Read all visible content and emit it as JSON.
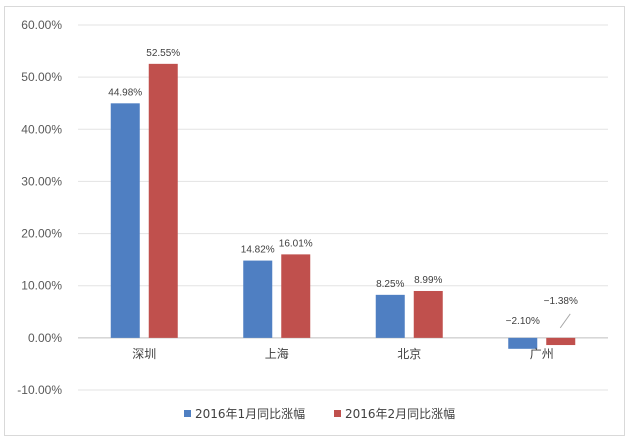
{
  "chart_data": {
    "type": "bar",
    "title": "",
    "xlabel": "",
    "ylabel": "",
    "categories": [
      "深圳",
      "上海",
      "北京",
      "广州"
    ],
    "series": [
      {
        "name": "2016年1月同比涨幅",
        "color": "#4f7fc2",
        "values": [
          44.98,
          14.82,
          8.25,
          -2.1
        ],
        "labels": [
          "44.98%",
          "14.82%",
          "8.25%",
          "−2.10%"
        ]
      },
      {
        "name": "2016年2月同比涨幅",
        "color": "#c0504d",
        "values": [
          52.55,
          16.01,
          8.99,
          -1.38
        ],
        "labels": [
          "52.55%",
          "16.01%",
          "8.99%",
          "−1.38%"
        ]
      }
    ],
    "ylim": [
      -10,
      60
    ],
    "ytick_values": [
      -10,
      0,
      10,
      20,
      30,
      40,
      50,
      60
    ],
    "ytick_labels": [
      "-10.00%",
      "0.00%",
      "10.00%",
      "20.00%",
      "30.00%",
      "40.00%",
      "50.00%",
      "60.00%"
    ],
    "grid": true,
    "legend_position": "bottom"
  }
}
